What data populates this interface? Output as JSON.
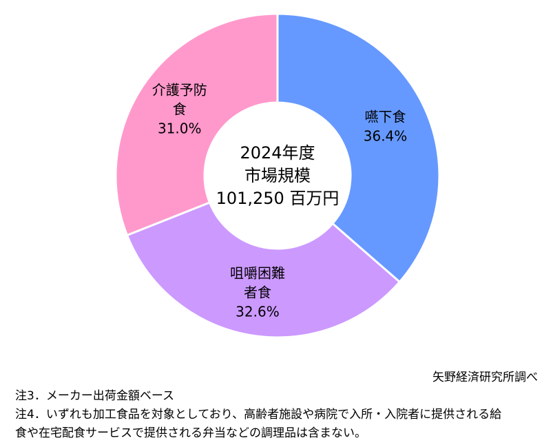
{
  "chart_data": {
    "type": "pie",
    "donut": true,
    "center_text": [
      "2024年度",
      "市場規模",
      "101,250 百万円"
    ],
    "slices": [
      {
        "label_lines": [
          "嚥下食"
        ],
        "value": 36.4,
        "value_text": "36.4%",
        "color": "#6699ff"
      },
      {
        "label_lines": [
          "咀嚼困難",
          "者食"
        ],
        "value": 32.6,
        "value_text": "32.6%",
        "color": "#cc99ff"
      },
      {
        "label_lines": [
          "介護予防",
          "食"
        ],
        "value": 31.0,
        "value_text": "31.0%",
        "color": "#ff99cc"
      }
    ],
    "start": "top",
    "direction": "clockwise",
    "legend": "none"
  },
  "source": "矢野経済研究所調べ",
  "notes": [
    "注3．メーカー出荷金額ベース",
    "注4．いずれも加工食品を対象としており、高齢者施設や病院で入所・入院者に提供される給",
    "食や在宅配食サービスで提供される弁当などの調理品は含まない。"
  ]
}
